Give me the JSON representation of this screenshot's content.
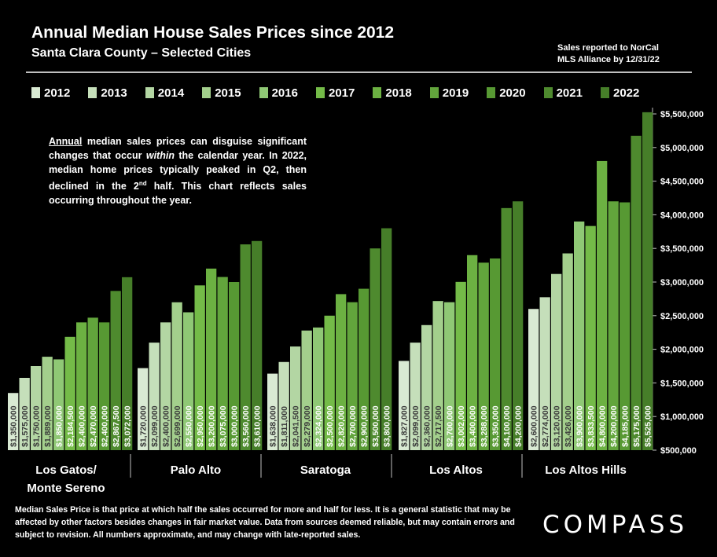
{
  "header": {
    "title": "Annual Median House Sales Prices since 2012",
    "subtitle": "Santa Clara County – Selected Cities",
    "source_note_line1": "Sales reported to NorCal",
    "source_note_line2": "MLS Alliance by 12/31/22"
  },
  "annotation": {
    "part1": "Annual",
    "part2": " median sales prices can disguise significant changes that occur ",
    "part3": "within",
    "part4": " the calendar year. In 2022, median home prices typically peaked in Q2, then declined in the 2",
    "part5": "nd",
    "part6": " half. This chart reflects sales occurring throughout the year."
  },
  "footnote": "Median Sales Price is that price at which half the sales occurred for more and half for less. It is a general statistic that may be affected by other factors besides changes in fair market value. Data from sources deemed reliable, but may contain errors and subject to revision.  All numbers approximate, and may change with late-reported sales.",
  "logo": "COMPASS",
  "chart_data": {
    "type": "bar",
    "title": "Annual Median House Sales Prices since 2012",
    "categories": [
      "Los Gatos/\nMonte Sereno",
      "Palo Alto",
      "Saratoga",
      "Los Altos",
      "Los Altos Hills"
    ],
    "series_names": [
      "2012",
      "2013",
      "2014",
      "2015",
      "2016",
      "2017",
      "2018",
      "2019",
      "2020",
      "2021",
      "2022"
    ],
    "colors": [
      "#d9ead3",
      "#c5dfba",
      "#b3d6a3",
      "#a3cf8c",
      "#8fc875",
      "#74bb48",
      "#6cb142",
      "#62a53c",
      "#579933",
      "#4e8a2e",
      "#467e29"
    ],
    "values": [
      [
        1350000,
        1575000,
        1750000,
        1889000,
        1850000,
        2184500,
        2400000,
        2470000,
        2400000,
        2867500,
        3072000
      ],
      [
        1720000,
        2099000,
        2400000,
        2699000,
        2550000,
        2950000,
        3200000,
        3075000,
        3000000,
        3560000,
        3610000
      ],
      [
        1638000,
        1811000,
        2041500,
        2279000,
        2324000,
        2500000,
        2820000,
        2700000,
        2900000,
        3500000,
        3800000
      ],
      [
        1827000,
        2099000,
        2360000,
        2717500,
        2700000,
        3002000,
        3400000,
        3288000,
        3350000,
        4100000,
        4200000
      ],
      [
        2600000,
        2774000,
        3120000,
        3426000,
        3900000,
        3833500,
        4800000,
        4200000,
        4185000,
        5175000,
        5525000
      ]
    ],
    "bar_labels": [
      [
        "$1,350,000",
        "$1,575,000",
        "$1,750,000",
        "$1,889,000",
        "$1,850,000",
        "$2,184,500",
        "$2,400,000",
        "$2,470,000",
        "$2,400,000",
        "$2,867,500",
        "$3,072,000"
      ],
      [
        "$1,720,000",
        "$2,099,000",
        "$2,400,000",
        "$2,699,000",
        "$2,550,000",
        "$2,950,000",
        "$3,200,000",
        "$3,075,000",
        "$3,000,000",
        "$3,560,000",
        "$3,610,000"
      ],
      [
        "$1,638,000",
        "$1,811,000",
        "$2,041,500",
        "$2,279,000",
        "$2,324,000",
        "$2,500,000",
        "$2,820,000",
        "$2,700,000",
        "$2,900,000",
        "$3,500,000",
        "$3,800,000"
      ],
      [
        "$1,827,000",
        "$2,099,000",
        "$2,360,000",
        "$2,717,500",
        "$2,700,000",
        "$3,002,000",
        "$3,400,000",
        "$3,288,000",
        "$3,350,000",
        "$4,100,000",
        "$4,200,000"
      ],
      [
        "$2,600,000",
        "$2,774,000",
        "$3,120,000",
        "$3,426,000",
        "$3,900,000",
        "$3,833,500",
        "$4,800,000",
        "$4,200,000",
        "$4,185,000",
        "$5,175,000",
        "$5,525,000"
      ]
    ],
    "ylim": [
      500000,
      5500000
    ],
    "y_ticks": [
      500000,
      1000000,
      1500000,
      2000000,
      2500000,
      3000000,
      3500000,
      4000000,
      4500000,
      5000000,
      5500000
    ],
    "y_tick_labels": [
      "$500,000",
      "$1,000,000",
      "$1,500,000",
      "$2,000,000",
      "$2,500,000",
      "$3,000,000",
      "$3,500,000",
      "$4,000,000",
      "$4,500,000",
      "$5,000,000",
      "$5,500,000"
    ],
    "y_axis_position": "right",
    "legend_position": "top",
    "grid": false
  }
}
